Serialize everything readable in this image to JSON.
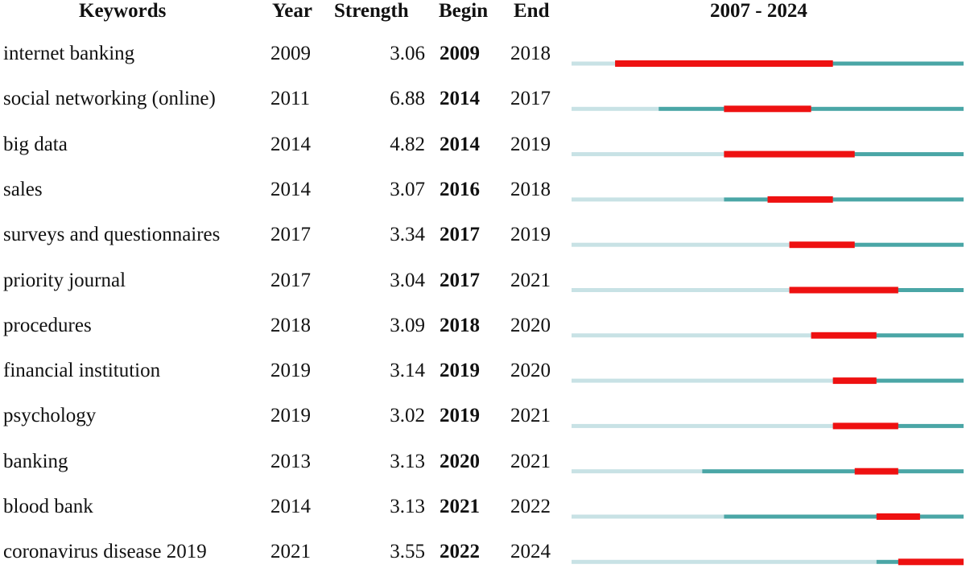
{
  "headers": {
    "keywords": "Keywords",
    "year": "Year",
    "strength": "Strength",
    "begin": "Begin",
    "end": "End",
    "range": "2007 - 2024"
  },
  "colors": {
    "before_appearance": "#c8e2e5",
    "active": "#4aa6a6",
    "burst": "#ee1111"
  },
  "chart_data": {
    "type": "table",
    "timeline_start": 2007,
    "timeline_end": 2024,
    "rows": [
      {
        "keyword": "internet banking",
        "year": "2009",
        "strength": "3.06",
        "begin": "2009",
        "end": "2018"
      },
      {
        "keyword": "social networking (online)",
        "year": "2011",
        "strength": "6.88",
        "begin": "2014",
        "end": "2017"
      },
      {
        "keyword": "big data",
        "year": "2014",
        "strength": "4.82",
        "begin": "2014",
        "end": "2019"
      },
      {
        "keyword": "sales",
        "year": "2014",
        "strength": "3.07",
        "begin": "2016",
        "end": "2018"
      },
      {
        "keyword": "surveys and questionnaires",
        "year": "2017",
        "strength": "3.34",
        "begin": "2017",
        "end": "2019"
      },
      {
        "keyword": "priority journal",
        "year": "2017",
        "strength": "3.04",
        "begin": "2017",
        "end": "2021"
      },
      {
        "keyword": "procedures",
        "year": "2018",
        "strength": "3.09",
        "begin": "2018",
        "end": "2020"
      },
      {
        "keyword": "financial institution",
        "year": "2019",
        "strength": "3.14",
        "begin": "2019",
        "end": "2020"
      },
      {
        "keyword": "psychology",
        "year": "2019",
        "strength": "3.02",
        "begin": "2019",
        "end": "2021"
      },
      {
        "keyword": "banking",
        "year": "2013",
        "strength": "3.13",
        "begin": "2020",
        "end": "2021"
      },
      {
        "keyword": "blood bank",
        "year": "2014",
        "strength": "3.13",
        "begin": "2021",
        "end": "2022"
      },
      {
        "keyword": "coronavirus disease 2019",
        "year": "2021",
        "strength": "3.55",
        "begin": "2022",
        "end": "2024"
      }
    ]
  }
}
